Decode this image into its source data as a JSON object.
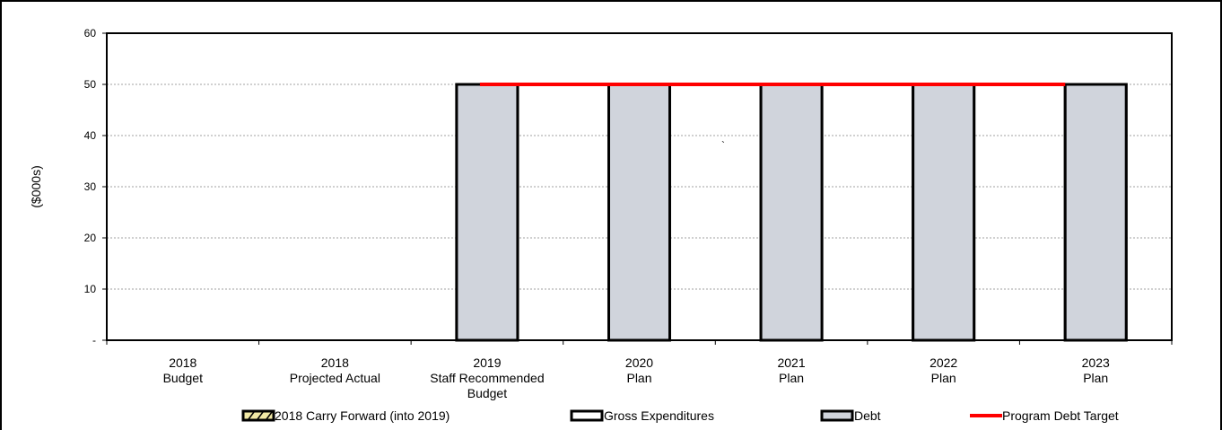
{
  "chart_data": {
    "type": "bar",
    "ylabel": "($000s)",
    "ylim": [
      0,
      60
    ],
    "yticks": [
      {
        "value": 0,
        "label": "-"
      },
      {
        "value": 10,
        "label": "10"
      },
      {
        "value": 20,
        "label": "20"
      },
      {
        "value": 30,
        "label": "30"
      },
      {
        "value": 40,
        "label": "40"
      },
      {
        "value": 50,
        "label": "50"
      },
      {
        "value": 60,
        "label": "60"
      }
    ],
    "grid": true,
    "categories": [
      [
        "2018",
        "Budget"
      ],
      [
        "2018",
        "Projected Actual"
      ],
      [
        "2019",
        "Staff Recommended",
        "Budget"
      ],
      [
        "2020",
        "Plan"
      ],
      [
        "2021",
        "Plan"
      ],
      [
        "2022",
        "Plan"
      ],
      [
        "2023",
        "Plan"
      ]
    ],
    "series": [
      {
        "name": "2018 Carry Forward (into 2019)",
        "kind": "bar",
        "color": "#f2e9a6",
        "values": [
          0,
          0,
          0,
          0,
          0,
          0,
          0
        ]
      },
      {
        "name": "Gross Expenditures",
        "kind": "bar",
        "color": "#ffffff",
        "values": [
          0,
          0,
          50,
          50,
          50,
          50,
          50
        ]
      },
      {
        "name": "Debt",
        "kind": "bar",
        "color": "#d0d4dc",
        "values": [
          0,
          0,
          50,
          50,
          50,
          50,
          50
        ]
      },
      {
        "name": "Program Debt Target",
        "kind": "line",
        "color": "#ff0000",
        "values": [
          null,
          null,
          50,
          50,
          50,
          50,
          50
        ]
      }
    ],
    "annotation": "`",
    "legend_position": "bottom"
  }
}
